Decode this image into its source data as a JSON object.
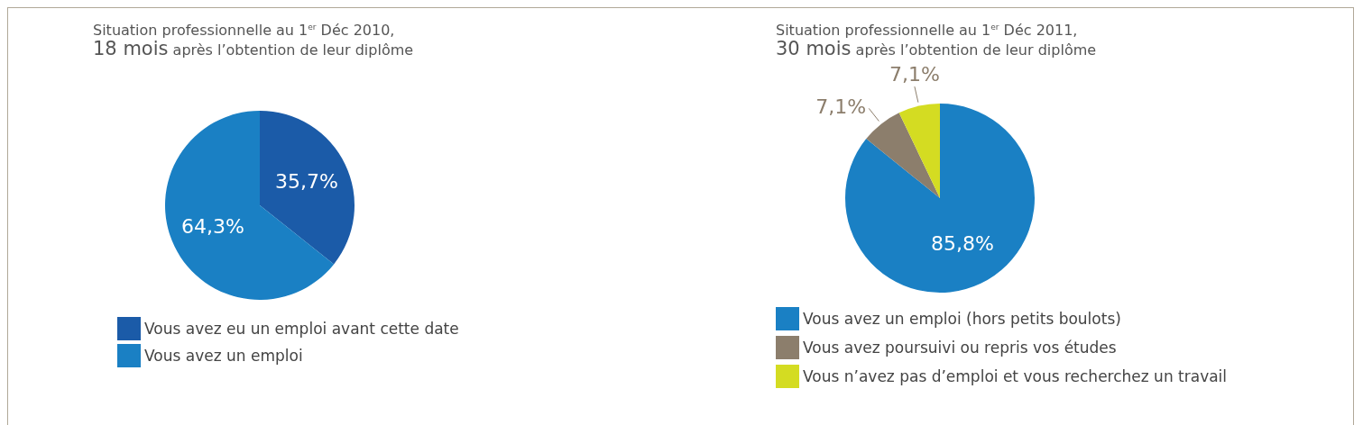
{
  "chart_data": [
    {
      "type": "pie",
      "title": "Situation professionnelle au 1$^{er}$ Déc 2010,",
      "subtitle": "18 mois après l’obtention de leur diplôme",
      "categories": [
        "Vous avez eu un emploi avant cette date",
        "Vous avez un emploi"
      ],
      "values": [
        35.7,
        64.3
      ],
      "colors": [
        "#1b5ba8",
        "#1a80c4"
      ],
      "value_labels": [
        "35,7%",
        "64,3%"
      ],
      "legend": "bottom"
    },
    {
      "type": "pie",
      "title": "Situation professionnelle au 1$^{er}$ Déc 2011,",
      "subtitle": "30 mois après l’obtention de leur diplôme",
      "categories": [
        "Vous avez un emploi (hors petits boulots)",
        "Vous avez poursuivi ou repris vos études",
        "Vous n’avez pas d’emploi et vous recherchez un travail"
      ],
      "values": [
        85.8,
        7.1,
        7.1
      ],
      "colors": [
        "#1a80c4",
        "#8c7e6c",
        "#d4dc22"
      ],
      "value_labels": [
        "85,8%",
        "7,1%",
        "7,1%"
      ],
      "legend": "bottom"
    }
  ]
}
